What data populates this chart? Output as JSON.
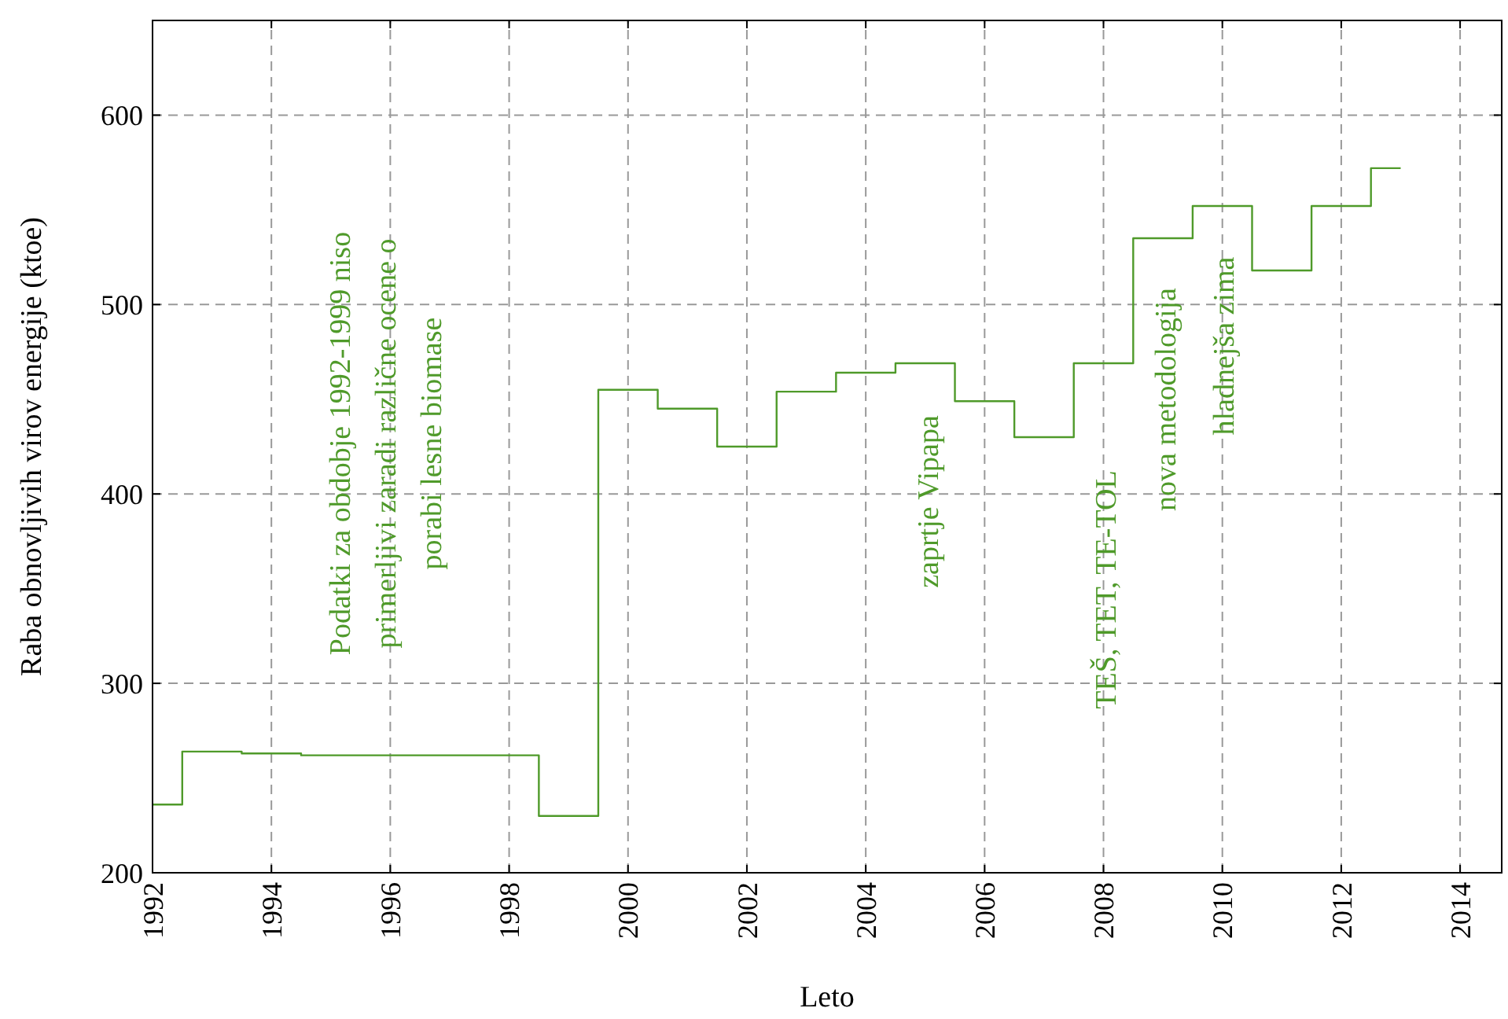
{
  "chart_data": {
    "type": "step",
    "xlabel": "Leto",
    "ylabel": "Raba obnovljivih virov energije (ktoe)",
    "x": [
      1992,
      1993,
      1994,
      1995,
      1996,
      1997,
      1998,
      1999,
      2000,
      2001,
      2002,
      2003,
      2004,
      2005,
      2006,
      2007,
      2008,
      2009,
      2010,
      2011,
      2012,
      2013
    ],
    "series": [
      {
        "color": "#4f9a2a",
        "values": [
          236,
          264,
          263,
          262,
          262,
          262,
          262,
          230,
          455,
          445,
          425,
          454,
          464,
          469,
          449,
          430,
          469,
          535,
          552,
          518,
          552,
          572
        ]
      }
    ],
    "xlim": [
      1992,
      2014.7
    ],
    "xticks": [
      1992,
      1994,
      1996,
      1998,
      2000,
      2002,
      2004,
      2006,
      2008,
      2010,
      2012,
      2014
    ],
    "ylim": [
      200,
      650
    ],
    "yticks": [
      200,
      300,
      400,
      500,
      600
    ],
    "grid": true,
    "annotations": [
      "Podatki za obdobje 1992-1999 niso\nprimerljivi zaradi različne ocene o\nporabi lesne biomase",
      "zaprtje Vipapa",
      "TEŠ, TET, TE-TOL",
      "nova metodologija",
      "hladnejša zima"
    ]
  }
}
